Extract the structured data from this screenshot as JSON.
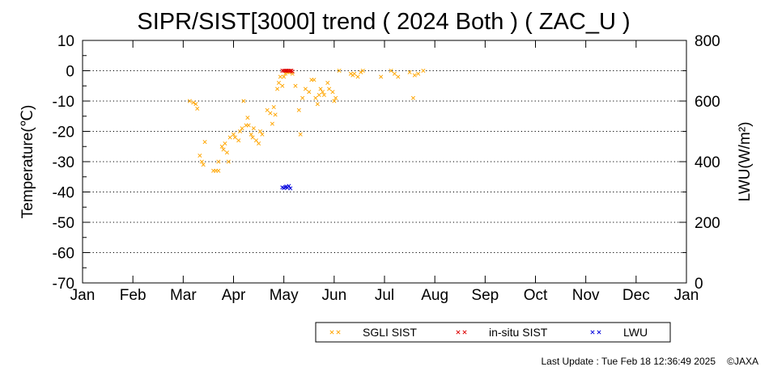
{
  "chart_data": {
    "type": "scatter",
    "title": "SIPR/SIST[3000] trend ( 2024 Both ) ( ZAC_U )",
    "ylabel": "Temperature(℃)",
    "y2label": "LWU(W/m²)",
    "ylim": [
      -70,
      10
    ],
    "y2lim": [
      0,
      800
    ],
    "yticks": [
      "10",
      "0",
      "-10",
      "-20",
      "-30",
      "-40",
      "-50",
      "-60",
      "-70"
    ],
    "y2ticks": [
      "800",
      "600",
      "400",
      "200",
      "0"
    ],
    "xlim": [
      0,
      12
    ],
    "xticks": [
      "Jan",
      "Feb",
      "Mar",
      "Apr",
      "May",
      "Jun",
      "Jul",
      "Aug",
      "Sep",
      "Oct",
      "Nov",
      "Dec",
      "Jan"
    ],
    "grid": "horizontal-dotted",
    "legend_position": "bottom-right",
    "series": [
      {
        "name": "SGLI SIST",
        "axis": "left",
        "color": "#ffa500",
        "marker": "x",
        "points": [
          [
            2.13,
            -10
          ],
          [
            2.2,
            -10.5
          ],
          [
            2.25,
            -11
          ],
          [
            2.28,
            -12.5
          ],
          [
            2.33,
            -28
          ],
          [
            2.37,
            -30
          ],
          [
            2.4,
            -31
          ],
          [
            2.43,
            -23.5
          ],
          [
            2.6,
            -33
          ],
          [
            2.65,
            -33
          ],
          [
            2.7,
            -33
          ],
          [
            2.7,
            -30
          ],
          [
            2.77,
            -25
          ],
          [
            2.8,
            -26
          ],
          [
            2.83,
            -24
          ],
          [
            2.87,
            -27
          ],
          [
            2.9,
            -30
          ],
          [
            2.93,
            -22
          ],
          [
            3.0,
            -21
          ],
          [
            3.03,
            -22
          ],
          [
            3.1,
            -23
          ],
          [
            3.13,
            -20
          ],
          [
            3.17,
            -19
          ],
          [
            3.2,
            -10
          ],
          [
            3.25,
            -18
          ],
          [
            3.28,
            -15.5
          ],
          [
            3.3,
            -18
          ],
          [
            3.35,
            -21
          ],
          [
            3.38,
            -22
          ],
          [
            3.4,
            -19
          ],
          [
            3.45,
            -23
          ],
          [
            3.5,
            -24
          ],
          [
            3.53,
            -20
          ],
          [
            3.57,
            -21
          ],
          [
            3.67,
            -13
          ],
          [
            3.73,
            -14
          ],
          [
            3.77,
            -17.5
          ],
          [
            3.8,
            -12
          ],
          [
            3.83,
            -14.5
          ],
          [
            3.87,
            -6
          ],
          [
            3.9,
            -4
          ],
          [
            3.93,
            -2
          ],
          [
            3.97,
            -5
          ],
          [
            4.0,
            -2
          ],
          [
            4.03,
            -1
          ],
          [
            4.07,
            -0.5
          ],
          [
            4.1,
            -0.5
          ],
          [
            4.13,
            0
          ],
          [
            4.17,
            -1
          ],
          [
            4.23,
            -5
          ],
          [
            4.3,
            -13
          ],
          [
            4.33,
            -21
          ],
          [
            4.37,
            -9
          ],
          [
            4.43,
            -6
          ],
          [
            4.5,
            -7
          ],
          [
            4.55,
            -3
          ],
          [
            4.6,
            -3
          ],
          [
            4.63,
            -9
          ],
          [
            4.67,
            -11
          ],
          [
            4.7,
            -8
          ],
          [
            4.73,
            -6
          ],
          [
            4.77,
            -7
          ],
          [
            4.8,
            -8
          ],
          [
            4.87,
            -4
          ],
          [
            4.9,
            -6
          ],
          [
            4.97,
            -7
          ],
          [
            5.0,
            -10
          ],
          [
            5.03,
            -9
          ],
          [
            5.1,
            0
          ],
          [
            5.33,
            -1
          ],
          [
            5.37,
            -1.5
          ],
          [
            5.4,
            -1
          ],
          [
            5.47,
            -2
          ],
          [
            5.53,
            -0.5
          ],
          [
            5.57,
            0
          ],
          [
            5.93,
            -2
          ],
          [
            6.13,
            0
          ],
          [
            6.2,
            -1
          ],
          [
            6.27,
            -2
          ],
          [
            6.5,
            -0.5
          ],
          [
            6.57,
            -9
          ],
          [
            6.6,
            -1.5
          ],
          [
            6.67,
            -1
          ],
          [
            6.77,
            0
          ]
        ]
      },
      {
        "name": "in-situ SIST",
        "axis": "left",
        "color": "#dd0000",
        "marker": "x",
        "points": [
          [
            3.97,
            0
          ],
          [
            4.0,
            0
          ],
          [
            4.03,
            0
          ],
          [
            4.05,
            0
          ],
          [
            4.07,
            0
          ],
          [
            4.1,
            0
          ],
          [
            4.13,
            0
          ],
          [
            4.15,
            0
          ],
          [
            4.17,
            -0.3
          ]
        ]
      },
      {
        "name": "LWU",
        "axis": "right",
        "color": "#0000dd",
        "marker": "x",
        "points": [
          [
            3.97,
            315
          ],
          [
            4.0,
            313
          ],
          [
            4.03,
            316
          ],
          [
            4.05,
            318
          ],
          [
            4.07,
            314
          ],
          [
            4.1,
            320
          ],
          [
            4.13,
            312
          ]
        ]
      }
    ]
  },
  "footer": {
    "last_update": "Last Update : Tue Feb 18 12:36:49 2025",
    "credit": "©JAXA"
  }
}
